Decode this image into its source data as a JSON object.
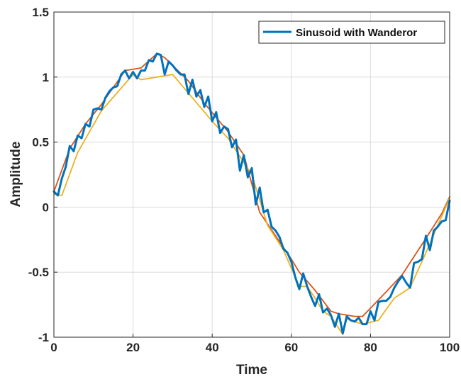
{
  "chart_data": {
    "type": "line",
    "xlabel": "Time",
    "ylabel": "Amplitude",
    "xlim": [
      0,
      100
    ],
    "ylim": [
      -1,
      1.5
    ],
    "xticks": [
      0,
      20,
      40,
      60,
      80,
      100
    ],
    "yticks": [
      -1,
      -0.5,
      0,
      0.5,
      1,
      1.5
    ],
    "xtick_labels": [
      "0",
      "20",
      "40",
      "60",
      "80",
      "100"
    ],
    "ytick_labels": [
      "-1",
      "-0.5",
      "0",
      "0.5",
      "1",
      "1.5"
    ],
    "grid": true,
    "legend_position": "top-right",
    "legend": [
      "Sinusoid with Wanderor"
    ],
    "series": [
      {
        "name": "Sinusoid with Wanderor",
        "color": "#0072BD",
        "in_legend": true,
        "x": [
          0,
          1,
          2,
          3,
          4,
          5,
          6,
          7,
          8,
          9,
          10,
          11,
          12,
          13,
          14,
          15,
          16,
          17,
          18,
          19,
          20,
          21,
          22,
          23,
          24,
          25,
          26,
          27,
          28,
          29,
          30,
          31,
          32,
          33,
          34,
          35,
          36,
          37,
          38,
          39,
          40,
          41,
          42,
          43,
          44,
          45,
          46,
          47,
          48,
          49,
          50,
          51,
          52,
          53,
          54,
          55,
          56,
          57,
          58,
          59,
          60,
          61,
          62,
          63,
          64,
          65,
          66,
          67,
          68,
          69,
          70,
          71,
          72,
          73,
          74,
          75,
          76,
          77,
          78,
          79,
          80,
          81,
          82,
          83,
          84,
          85,
          86,
          87,
          88,
          89,
          90,
          91,
          92,
          93,
          94,
          95,
          96,
          97,
          98,
          99,
          100
        ],
        "y": [
          0.12,
          0.09,
          0.22,
          0.31,
          0.47,
          0.43,
          0.55,
          0.53,
          0.64,
          0.62,
          0.75,
          0.76,
          0.75,
          0.84,
          0.89,
          0.92,
          0.93,
          1.02,
          1.05,
          0.99,
          1.04,
          0.99,
          1.05,
          1.05,
          1.13,
          1.12,
          1.18,
          1.17,
          1.02,
          1.12,
          1.09,
          1.05,
          1.02,
          1.02,
          0.87,
          0.98,
          0.85,
          0.9,
          0.77,
          0.85,
          0.66,
          0.73,
          0.57,
          0.62,
          0.6,
          0.46,
          0.52,
          0.28,
          0.4,
          0.23,
          0.3,
          0.02,
          0.15,
          -0.04,
          -0.02,
          -0.15,
          -0.18,
          -0.23,
          -0.32,
          -0.35,
          -0.42,
          -0.54,
          -0.63,
          -0.51,
          -0.61,
          -0.69,
          -0.76,
          -0.67,
          -0.81,
          -0.78,
          -0.83,
          -0.92,
          -0.82,
          -0.97,
          -0.84,
          -0.87,
          -0.88,
          -0.85,
          -0.9,
          -0.9,
          -0.8,
          -0.87,
          -0.73,
          -0.72,
          -0.72,
          -0.69,
          -0.62,
          -0.57,
          -0.53,
          -0.58,
          -0.62,
          -0.43,
          -0.42,
          -0.4,
          -0.22,
          -0.33,
          -0.18,
          -0.15,
          -0.11,
          -0.1,
          0.05
        ]
      },
      {
        "name": "",
        "color": "#D95319",
        "in_legend": false,
        "x": [
          0,
          4,
          8,
          12,
          18,
          22,
          26,
          28,
          34,
          38,
          44,
          48,
          52,
          56,
          60,
          62,
          66,
          70,
          72,
          76,
          78,
          84,
          88,
          94,
          98,
          100
        ],
        "y": [
          0.12,
          0.45,
          0.64,
          0.79,
          1.05,
          1.07,
          1.18,
          1.15,
          0.97,
          0.8,
          0.58,
          0.4,
          -0.04,
          -0.22,
          -0.4,
          -0.5,
          -0.64,
          -0.8,
          -0.82,
          -0.84,
          -0.84,
          -0.65,
          -0.52,
          -0.24,
          -0.05,
          0.08
        ]
      },
      {
        "name": "",
        "color": "#EDB120",
        "in_legend": false,
        "x": [
          0,
          2,
          6,
          12,
          20,
          22,
          26,
          30,
          40,
          44,
          50,
          54,
          58,
          62,
          64,
          66,
          68,
          70,
          73,
          74,
          78,
          82,
          86,
          90,
          94,
          100
        ],
        "y": [
          0.1,
          0.09,
          0.42,
          0.74,
          1.02,
          0.98,
          1.0,
          1.02,
          0.66,
          0.53,
          0.25,
          -0.14,
          -0.33,
          -0.61,
          -0.61,
          -0.7,
          -0.8,
          -0.84,
          -0.98,
          -0.86,
          -0.9,
          -0.87,
          -0.7,
          -0.62,
          -0.35,
          0.07
        ]
      }
    ]
  }
}
